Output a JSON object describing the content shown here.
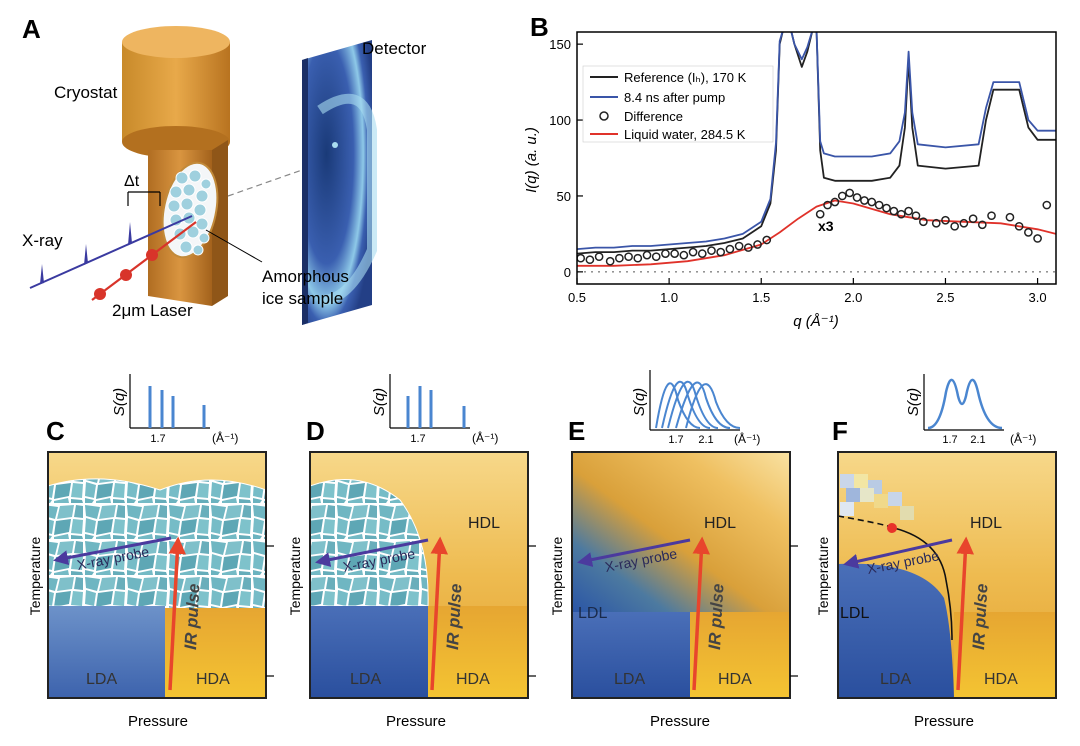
{
  "panel_letters": {
    "a": "A",
    "b": "B",
    "c": "C",
    "d": "D",
    "e": "E",
    "f": "F"
  },
  "panelA": {
    "cryostat": "Cryostat",
    "detector": "Detector",
    "delta_t": "Δt",
    "xray": "X-ray",
    "laser": "2μm Laser",
    "sample_line1": "Amorphous",
    "sample_line2": "ice sample"
  },
  "panelB": {
    "ylabel": "I(q) (a. u.)",
    "xlabel": "q (Å⁻¹)",
    "x3": "x3",
    "legend": [
      {
        "label": "Reference (Iₕ), 170 K",
        "color": "#222222",
        "kind": "line"
      },
      {
        "label": "8.4 ns after pump",
        "color": "#3a55a8",
        "kind": "line"
      },
      {
        "label": "Difference",
        "color": "#222222",
        "kind": "marker"
      },
      {
        "label": "Liquid water, 284.5 K",
        "color": "#e0322a",
        "kind": "line"
      }
    ]
  },
  "chart_data": {
    "type": "line",
    "title": "",
    "xlabel": "q (Å⁻¹)",
    "ylabel": "I(q) (a. u.)",
    "xlim": [
      0.5,
      3.1
    ],
    "ylim": [
      -8,
      158
    ],
    "xticks": [
      0.5,
      1.0,
      1.5,
      2.0,
      2.5,
      3.0
    ],
    "yticks": [
      0,
      50,
      100,
      150
    ],
    "series": [
      {
        "name": "Reference (Iₕ), 170 K",
        "color": "#222222",
        "x": [
          0.5,
          0.6,
          0.7,
          0.8,
          0.9,
          1.0,
          1.1,
          1.2,
          1.3,
          1.4,
          1.5,
          1.55,
          1.58,
          1.6,
          1.62,
          1.66,
          1.68,
          1.72,
          1.75,
          1.78,
          1.8,
          1.82,
          1.84,
          1.9,
          2.0,
          2.1,
          2.2,
          2.25,
          2.28,
          2.3,
          2.32,
          2.35,
          2.5,
          2.68,
          2.72,
          2.76,
          2.9,
          2.95,
          3.0,
          3.05,
          3.1
        ],
        "y": [
          12,
          13,
          13,
          14,
          14,
          15,
          16,
          17,
          19,
          22,
          30,
          45,
          80,
          150,
          160,
          160,
          150,
          135,
          145,
          160,
          160,
          80,
          62,
          60,
          60,
          60,
          62,
          70,
          95,
          140,
          95,
          70,
          68,
          70,
          100,
          120,
          120,
          95,
          87,
          87,
          87
        ]
      },
      {
        "name": "8.4 ns after pump",
        "color": "#3a55a8",
        "x": [
          0.5,
          0.6,
          0.7,
          0.8,
          0.9,
          1.0,
          1.1,
          1.2,
          1.3,
          1.4,
          1.5,
          1.55,
          1.58,
          1.6,
          1.62,
          1.66,
          1.68,
          1.72,
          1.75,
          1.78,
          1.8,
          1.82,
          1.84,
          1.9,
          2.0,
          2.1,
          2.2,
          2.25,
          2.28,
          2.3,
          2.32,
          2.35,
          2.5,
          2.68,
          2.72,
          2.76,
          2.9,
          2.95,
          3.0,
          3.05,
          3.1
        ],
        "y": [
          15,
          16,
          16,
          17,
          17,
          18,
          19,
          20,
          22,
          25,
          33,
          48,
          85,
          152,
          160,
          160,
          150,
          140,
          148,
          160,
          160,
          86,
          78,
          76,
          76,
          76,
          78,
          86,
          105,
          145,
          105,
          84,
          82,
          84,
          108,
          125,
          125,
          100,
          93,
          93,
          93
        ]
      },
      {
        "name": "Liquid water, 284.5 K",
        "color": "#e0322a",
        "x": [
          0.5,
          0.7,
          0.9,
          1.1,
          1.3,
          1.5,
          1.6,
          1.7,
          1.8,
          1.9,
          2.0,
          2.2,
          2.4,
          2.6,
          2.8,
          3.0,
          3.1
        ],
        "y": [
          4,
          4,
          5,
          7,
          11,
          18,
          26,
          35,
          43,
          47,
          45,
          38,
          34,
          33,
          32,
          28,
          25
        ]
      },
      {
        "name": "Difference",
        "color": "#222222",
        "kind": "scatter",
        "x": [
          0.52,
          0.57,
          0.62,
          0.68,
          0.73,
          0.78,
          0.83,
          0.88,
          0.93,
          0.98,
          1.03,
          1.08,
          1.13,
          1.18,
          1.23,
          1.28,
          1.33,
          1.38,
          1.43,
          1.48,
          1.53,
          1.82,
          1.86,
          1.9,
          1.94,
          1.98,
          2.02,
          2.06,
          2.1,
          2.14,
          2.18,
          2.22,
          2.26,
          2.3,
          2.34,
          2.38,
          2.45,
          2.5,
          2.55,
          2.6,
          2.65,
          2.7,
          2.75,
          2.85,
          2.9,
          2.95,
          3.0,
          3.05
        ],
        "y": [
          9,
          8,
          10,
          7,
          9,
          10,
          9,
          11,
          10,
          12,
          12,
          11,
          13,
          12,
          14,
          13,
          15,
          17,
          16,
          18,
          21,
          38,
          44,
          46,
          50,
          52,
          49,
          47,
          46,
          44,
          42,
          40,
          38,
          40,
          37,
          33,
          32,
          34,
          30,
          32,
          35,
          31,
          37,
          36,
          30,
          26,
          22,
          44
        ]
      }
    ]
  },
  "panelC": {
    "sq_ylabel": "S(q)",
    "sq_tick": "1.7",
    "sq_unit": "(Å⁻¹)",
    "probe": "X-ray probe",
    "pulse": "IR pulse",
    "lda": "LDA",
    "hda": "HDA",
    "temperature": "Temperature",
    "pressure": "Pressure"
  },
  "panelD": {
    "sq_ylabel": "S(q)",
    "sq_tick": "1.7",
    "sq_unit": "(Å⁻¹)",
    "probe": "X-ray probe",
    "pulse": "IR pulse",
    "hdl": "HDL",
    "lda": "LDA",
    "hda": "HDA",
    "temperature": "Temperature",
    "pressure": "Pressure"
  },
  "panelE": {
    "sq_ylabel": "S(q)",
    "sq_tick1": "1.7",
    "sq_tick2": "2.1",
    "sq_unit": "(Å⁻¹)",
    "probe": "X-ray probe",
    "pulse": "IR pulse",
    "hdl": "HDL",
    "ldl": "LDL",
    "lda": "LDA",
    "hda": "HDA",
    "temperature": "Temperature",
    "pressure": "Pressure"
  },
  "panelF": {
    "sq_ylabel": "S(q)",
    "sq_tick1": "1.7",
    "sq_tick2": "2.1",
    "sq_unit": "(Å⁻¹)",
    "probe": "X-ray probe",
    "pulse": "IR pulse",
    "hdl": "HDL",
    "ldl": "LDL",
    "lda": "LDA",
    "hda": "HDA",
    "temperature": "Temperature",
    "pressure": "Pressure"
  }
}
